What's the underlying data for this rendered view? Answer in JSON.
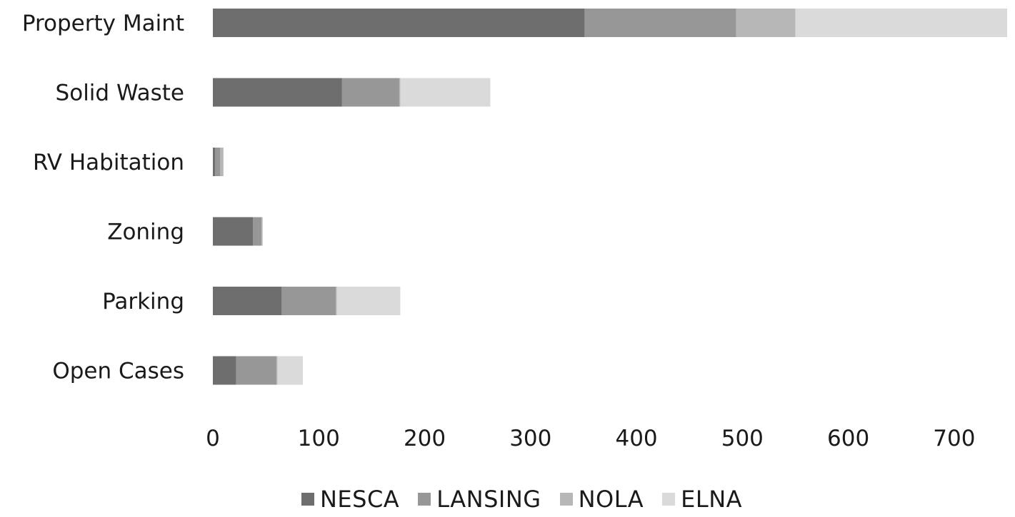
{
  "chart_data": {
    "type": "bar",
    "orientation": "horizontal",
    "stacked": true,
    "categories": [
      "Property Maint",
      "Solid Waste",
      "RV Habitation",
      "Zoning",
      "Parking",
      "Open Cases"
    ],
    "series": [
      {
        "name": "NESCA",
        "color": "#6e6e6e",
        "values": [
          351,
          122,
          2,
          38,
          65,
          22
        ]
      },
      {
        "name": "LANSING",
        "color": "#979797",
        "values": [
          143,
          54,
          5,
          8,
          51,
          38
        ]
      },
      {
        "name": "NOLA",
        "color": "#b7b7b7",
        "values": [
          56,
          1,
          3,
          1,
          1,
          1
        ]
      },
      {
        "name": "ELNA",
        "color": "#dadada",
        "values": [
          200,
          85,
          0,
          0,
          60,
          24
        ]
      }
    ],
    "xticks": [
      "0",
      "100",
      "200",
      "300",
      "400",
      "500",
      "600",
      "700"
    ],
    "xlim": [
      0,
      750
    ],
    "grid": false,
    "legend_position": "bottom"
  }
}
